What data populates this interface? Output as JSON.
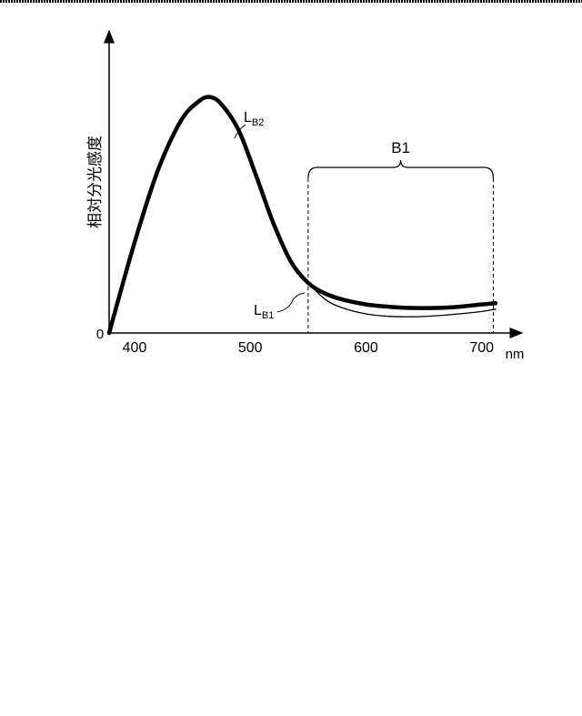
{
  "chart_data": {
    "type": "line",
    "ylabel": "相対分光感度",
    "xlabel": "nm",
    "xlim": [
      378,
      712
    ],
    "ylim": [
      0,
      1.0
    ],
    "x_ticks": [
      "400",
      "500",
      "600",
      "700"
    ],
    "x_tick_values": [
      400,
      500,
      600,
      700
    ],
    "y_tick_label": "0",
    "band": {
      "label": "B1",
      "x_range": [
        550,
        710
      ]
    },
    "series": [
      {
        "name": "LB2",
        "label_main": "L",
        "label_sub": "B2",
        "emphasis": "bold",
        "x": [
          378,
          400,
          420,
          440,
          455,
          465,
          475,
          490,
          505,
          520,
          535,
          550,
          565,
          580,
          600,
          620,
          640,
          660,
          680,
          700,
          712
        ],
        "y": [
          0.0,
          0.38,
          0.68,
          0.89,
          0.97,
          0.99,
          0.96,
          0.85,
          0.66,
          0.46,
          0.3,
          0.21,
          0.165,
          0.14,
          0.12,
          0.11,
          0.105,
          0.105,
          0.11,
          0.12,
          0.125
        ]
      },
      {
        "name": "LB1",
        "label_main": "L",
        "label_sub": "B1",
        "emphasis": "thin",
        "x": [
          550,
          565,
          580,
          600,
          620,
          640,
          660,
          680,
          700,
          712
        ],
        "y": [
          0.21,
          0.14,
          0.105,
          0.08,
          0.07,
          0.068,
          0.072,
          0.08,
          0.09,
          0.1
        ]
      }
    ]
  }
}
